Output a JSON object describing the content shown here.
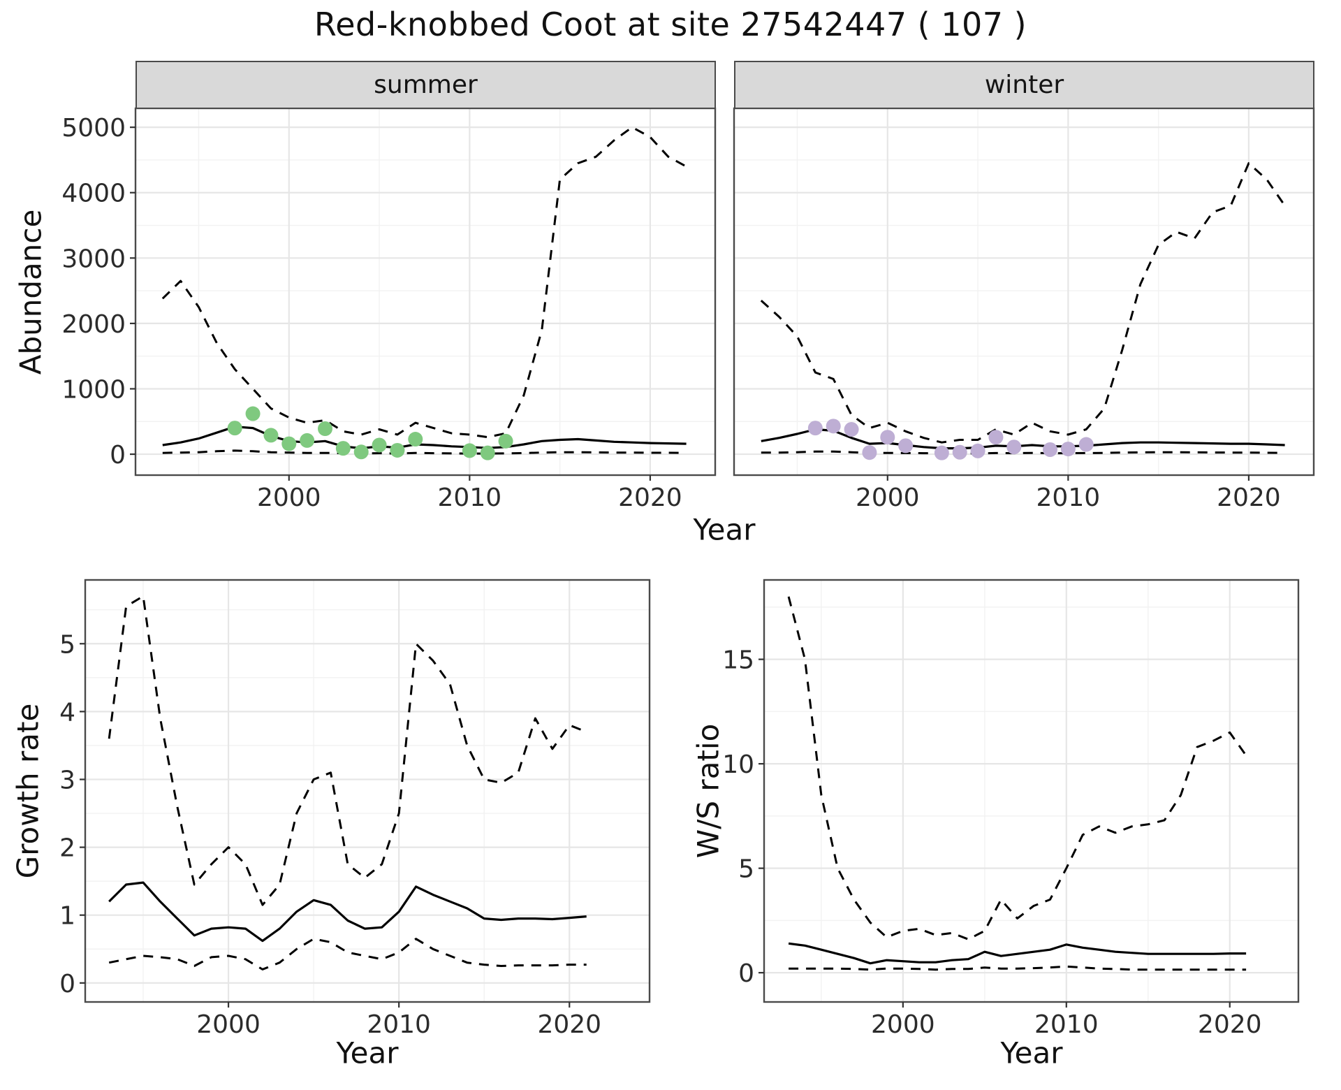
{
  "title": "Red-knobbed Coot at site 27542447 ( 107 )",
  "colors": {
    "line": "#000000",
    "summer_point": "#7FC97F",
    "winter_point": "#BEAED4",
    "strip_bg": "#D9D9D9",
    "panel_border": "#4A4A4A",
    "grid_major": "#E6E6E6",
    "grid_minor": "#F2F2F2",
    "tick_text": "#2B2B2B"
  },
  "chart_data": [
    {
      "id": "abundance-summer",
      "type": "line",
      "facet": "summer",
      "ylabel": "Abundance",
      "xlabel": "Year",
      "xlim": [
        1991.5,
        2023.6
      ],
      "ylim": [
        -320,
        5290
      ],
      "xticks": [
        2000,
        2010,
        2020
      ],
      "yticks": [
        0,
        1000,
        2000,
        3000,
        4000,
        5000
      ],
      "grid": true,
      "legend": "none",
      "x": [
        1993,
        1994,
        1995,
        1996,
        1997,
        1998,
        1999,
        2000,
        2001,
        2002,
        2003,
        2004,
        2005,
        2006,
        2007,
        2008,
        2009,
        2010,
        2011,
        2012,
        2013,
        2014,
        2015,
        2016,
        2017,
        2018,
        2019,
        2020,
        2021,
        2022
      ],
      "series": [
        {
          "name": "median",
          "style": "solid",
          "values": [
            140,
            180,
            240,
            330,
            420,
            400,
            280,
            200,
            180,
            200,
            120,
            90,
            120,
            100,
            150,
            140,
            120,
            110,
            95,
            110,
            150,
            200,
            220,
            230,
            210,
            190,
            180,
            170,
            165,
            160
          ]
        },
        {
          "name": "upper_ci",
          "style": "dashed",
          "values": [
            2380,
            2650,
            2250,
            1700,
            1300,
            1000,
            700,
            560,
            480,
            520,
            350,
            300,
            380,
            300,
            480,
            400,
            320,
            300,
            260,
            320,
            900,
            1900,
            4200,
            4450,
            4550,
            4800,
            5000,
            4850,
            4550,
            4400
          ]
        },
        {
          "name": "lower_ci",
          "style": "dashed",
          "values": [
            20,
            25,
            30,
            45,
            55,
            45,
            30,
            25,
            20,
            20,
            15,
            10,
            15,
            10,
            20,
            15,
            12,
            10,
            10,
            12,
            18,
            25,
            30,
            30,
            28,
            25,
            25,
            22,
            22,
            20
          ]
        }
      ],
      "points": {
        "name": "observed-counts-summer",
        "color": "#7FC97F",
        "x": [
          1997,
          1998,
          1999,
          2000,
          2001,
          2002,
          2003,
          2004,
          2005,
          2006,
          2007,
          2010,
          2011,
          2012
        ],
        "y": [
          400,
          620,
          290,
          160,
          210,
          390,
          90,
          35,
          140,
          60,
          230,
          55,
          20,
          200
        ]
      }
    },
    {
      "id": "abundance-winter",
      "type": "line",
      "facet": "winter",
      "ylabel": "Abundance",
      "xlabel": "Year",
      "xlim": [
        1991.5,
        2023.6
      ],
      "ylim": [
        -320,
        5290
      ],
      "xticks": [
        2000,
        2010,
        2020
      ],
      "yticks": [
        0,
        1000,
        2000,
        3000,
        4000,
        5000
      ],
      "grid": true,
      "legend": "none",
      "x": [
        1993,
        1994,
        1995,
        1996,
        1997,
        1998,
        1999,
        2000,
        2001,
        2002,
        2003,
        2004,
        2005,
        2006,
        2007,
        2008,
        2009,
        2010,
        2011,
        2012,
        2013,
        2014,
        2015,
        2016,
        2017,
        2018,
        2019,
        2020,
        2021,
        2022
      ],
      "series": [
        {
          "name": "median",
          "style": "solid",
          "values": [
            200,
            250,
            310,
            380,
            360,
            250,
            160,
            170,
            140,
            110,
            90,
            90,
            100,
            130,
            120,
            140,
            120,
            120,
            130,
            150,
            170,
            180,
            180,
            175,
            170,
            165,
            160,
            160,
            150,
            140
          ]
        },
        {
          "name": "upper_ci",
          "style": "dashed",
          "values": [
            2350,
            2100,
            1800,
            1250,
            1150,
            600,
            400,
            480,
            350,
            250,
            180,
            220,
            220,
            380,
            300,
            480,
            350,
            300,
            380,
            700,
            1600,
            2600,
            3200,
            3400,
            3300,
            3700,
            3800,
            4450,
            4200,
            3800
          ]
        },
        {
          "name": "lower_ci",
          "style": "dashed",
          "values": [
            25,
            25,
            30,
            40,
            40,
            30,
            20,
            20,
            18,
            15,
            12,
            12,
            12,
            18,
            15,
            20,
            15,
            15,
            18,
            20,
            25,
            28,
            30,
            30,
            28,
            26,
            25,
            25,
            22,
            20
          ]
        }
      ],
      "points": {
        "name": "observed-counts-winter",
        "color": "#BEAED4",
        "x": [
          1996,
          1997,
          1998,
          1999,
          2000,
          2001,
          2003,
          2004,
          2005,
          2006,
          2007,
          2009,
          2010,
          2011
        ],
        "y": [
          400,
          430,
          380,
          25,
          260,
          130,
          20,
          30,
          50,
          260,
          110,
          70,
          80,
          150
        ]
      }
    },
    {
      "id": "growth-rate",
      "type": "line",
      "facet": "",
      "ylabel": "Growth rate",
      "xlabel": "Year",
      "xlim": [
        1991.6,
        2024.7
      ],
      "ylim": [
        -0.28,
        5.94
      ],
      "xticks": [
        2000,
        2010,
        2020
      ],
      "yticks": [
        0,
        1,
        2,
        3,
        4,
        5
      ],
      "grid": true,
      "legend": "none",
      "x": [
        1993,
        1994,
        1995,
        1996,
        1997,
        1998,
        1999,
        2000,
        2001,
        2002,
        2003,
        2004,
        2005,
        2006,
        2007,
        2008,
        2009,
        2010,
        2011,
        2012,
        2013,
        2014,
        2015,
        2016,
        2017,
        2018,
        2019,
        2020,
        2021
      ],
      "series": [
        {
          "name": "median",
          "style": "solid",
          "values": [
            1.2,
            1.45,
            1.48,
            1.2,
            0.95,
            0.7,
            0.8,
            0.82,
            0.8,
            0.62,
            0.8,
            1.05,
            1.22,
            1.15,
            0.92,
            0.8,
            0.82,
            1.05,
            1.42,
            1.3,
            1.2,
            1.1,
            0.95,
            0.93,
            0.95,
            0.95,
            0.94,
            0.96,
            0.98
          ]
        },
        {
          "name": "upper_ci",
          "style": "dashed",
          "values": [
            3.6,
            5.55,
            5.7,
            3.9,
            2.6,
            1.45,
            1.75,
            2.0,
            1.75,
            1.15,
            1.45,
            2.5,
            3.0,
            3.1,
            1.75,
            1.55,
            1.75,
            2.5,
            5.0,
            4.75,
            4.4,
            3.5,
            3.0,
            2.95,
            3.1,
            3.9,
            3.45,
            3.8,
            3.7
          ]
        },
        {
          "name": "lower_ci",
          "style": "dashed",
          "values": [
            0.3,
            0.35,
            0.4,
            0.38,
            0.35,
            0.25,
            0.38,
            0.4,
            0.35,
            0.2,
            0.3,
            0.5,
            0.65,
            0.6,
            0.45,
            0.4,
            0.35,
            0.45,
            0.65,
            0.5,
            0.4,
            0.3,
            0.27,
            0.25,
            0.26,
            0.26,
            0.26,
            0.27,
            0.27
          ]
        }
      ]
    },
    {
      "id": "ws-ratio",
      "type": "line",
      "facet": "",
      "ylabel": "W/S ratio",
      "xlabel": "Year",
      "xlim": [
        1991.5,
        2024.2
      ],
      "ylim": [
        -1.4,
        18.8
      ],
      "xticks": [
        2000,
        2010,
        2020
      ],
      "yticks": [
        0,
        5,
        10,
        15
      ],
      "grid": true,
      "legend": "none",
      "x": [
        1993,
        1994,
        1995,
        1996,
        1997,
        1998,
        1999,
        2000,
        2001,
        2002,
        2003,
        2004,
        2005,
        2006,
        2007,
        2008,
        2009,
        2010,
        2011,
        2012,
        2013,
        2014,
        2015,
        2016,
        2017,
        2018,
        2019,
        2020,
        2021
      ],
      "series": [
        {
          "name": "median",
          "style": "solid",
          "values": [
            1.4,
            1.3,
            1.1,
            0.9,
            0.7,
            0.45,
            0.6,
            0.55,
            0.5,
            0.5,
            0.6,
            0.65,
            1.0,
            0.8,
            0.9,
            1.0,
            1.1,
            1.35,
            1.2,
            1.1,
            1.0,
            0.95,
            0.9,
            0.9,
            0.9,
            0.9,
            0.9,
            0.92,
            0.92
          ]
        },
        {
          "name": "upper_ci",
          "style": "dashed",
          "values": [
            18.0,
            15.0,
            8.5,
            5.0,
            3.5,
            2.4,
            1.7,
            2.0,
            2.1,
            1.8,
            1.9,
            1.6,
            2.0,
            3.5,
            2.6,
            3.2,
            3.5,
            5.0,
            6.6,
            7.0,
            6.7,
            7.0,
            7.1,
            7.3,
            8.5,
            10.8,
            11.1,
            11.5,
            10.4
          ]
        },
        {
          "name": "lower_ci",
          "style": "dashed",
          "values": [
            0.2,
            0.2,
            0.2,
            0.2,
            0.18,
            0.15,
            0.2,
            0.2,
            0.18,
            0.15,
            0.18,
            0.18,
            0.25,
            0.2,
            0.2,
            0.22,
            0.25,
            0.3,
            0.25,
            0.2,
            0.18,
            0.15,
            0.15,
            0.15,
            0.15,
            0.15,
            0.15,
            0.15,
            0.15
          ]
        }
      ]
    }
  ]
}
